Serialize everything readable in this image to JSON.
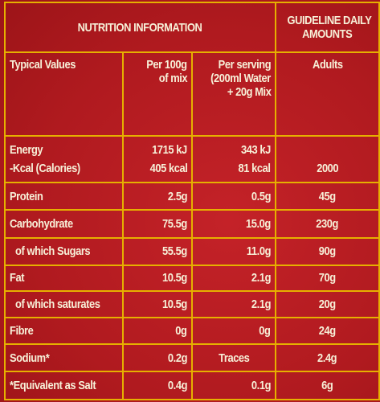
{
  "header": {
    "nutrition_information": "NUTRITION INFORMATION",
    "guideline_line1": "GUIDELINE DAILY",
    "guideline_line2": "AMOUNTS"
  },
  "columns": {
    "typical_values": "Typical Values",
    "per100_line1": "Per 100g",
    "per100_line2": "of mix",
    "serving_line1": "Per serving",
    "serving_line2": "(200ml Water",
    "serving_line3": "+ 20g Mix",
    "adults": "Adults"
  },
  "energy": {
    "label_kj": "Energy",
    "label_kcal": "-Kcal (Calories)",
    "per100_kj": "1715 kJ",
    "per100_kcal": "405 kcal",
    "serving_kj": "343 kJ",
    "serving_kcal": "81 kcal",
    "gda_kcal": "2000"
  },
  "rows": [
    {
      "label": "Protein",
      "per100": "2.5g",
      "serving": "0.5g",
      "gda": "45g",
      "indent": false
    },
    {
      "label": "Carbohydrate",
      "per100": "75.5g",
      "serving": "15.0g",
      "gda": "230g",
      "indent": false
    },
    {
      "label": "of which Sugars",
      "per100": "55.5g",
      "serving": "11.0g",
      "gda": "90g",
      "indent": true
    },
    {
      "label": "Fat",
      "per100": "10.5g",
      "serving": "2.1g",
      "gda": "70g",
      "indent": false
    },
    {
      "label": "of which saturates",
      "per100": "10.5g",
      "serving": "2.1g",
      "gda": "20g",
      "indent": true
    },
    {
      "label": "Fibre",
      "per100": "0g",
      "serving": "0g",
      "gda": "24g",
      "indent": false
    },
    {
      "label": "Sodium*",
      "per100": "0.2g",
      "serving": "Traces",
      "gda": "2.4g",
      "indent": false
    },
    {
      "label": "*Equivalent as Salt",
      "per100": "0.4g",
      "serving": "0.1g",
      "gda": "6g",
      "indent": false
    }
  ]
}
